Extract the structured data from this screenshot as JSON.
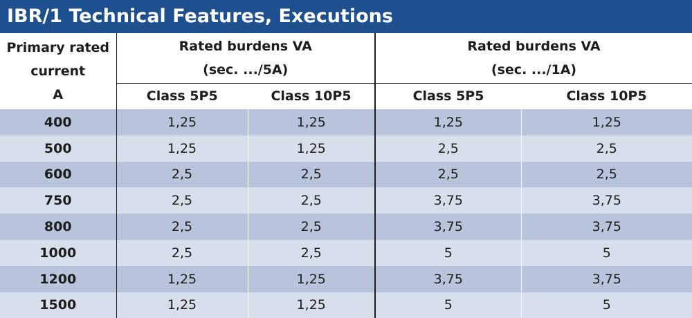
{
  "title": "IBR/1 Technical Features, Executions",
  "header": {
    "primary_col": [
      "Primary rated",
      "current",
      "A"
    ],
    "group_5a": [
      "Rated burdens VA",
      "(sec. .../5A)"
    ],
    "group_1a": [
      "Rated burdens VA",
      "(sec. .../1A)"
    ],
    "class_5p5": "Class 5P5",
    "class_10p5": "Class 10P5"
  },
  "rows": [
    {
      "primary": "400",
      "a5_5p5": "1,25",
      "a5_10p5": "1,25",
      "a1_5p5": "1,25",
      "a1_10p5": "1,25"
    },
    {
      "primary": "500",
      "a5_5p5": "1,25",
      "a5_10p5": "1,25",
      "a1_5p5": "2,5",
      "a1_10p5": "2,5"
    },
    {
      "primary": "600",
      "a5_5p5": "2,5",
      "a5_10p5": "2,5",
      "a1_5p5": "2,5",
      "a1_10p5": "2,5"
    },
    {
      "primary": "750",
      "a5_5p5": "2,5",
      "a5_10p5": "2,5",
      "a1_5p5": "3,75",
      "a1_10p5": "3,75"
    },
    {
      "primary": "800",
      "a5_5p5": "2,5",
      "a5_10p5": "2,5",
      "a1_5p5": "3,75",
      "a1_10p5": "3,75"
    },
    {
      "primary": "1000",
      "a5_5p5": "2,5",
      "a5_10p5": "2,5",
      "a1_5p5": "5",
      "a1_10p5": "5"
    },
    {
      "primary": "1200",
      "a5_5p5": "1,25",
      "a5_10p5": "1,25",
      "a1_5p5": "3,75",
      "a1_10p5": "3,75"
    },
    {
      "primary": "1500",
      "a5_5p5": "1,25",
      "a5_10p5": "1,25",
      "a1_5p5": "5",
      "a1_10p5": "5"
    }
  ],
  "colors": {
    "title_bg": "#1e4f8e",
    "row_dark": "#b8c4db",
    "row_light": "#d8dfec"
  }
}
